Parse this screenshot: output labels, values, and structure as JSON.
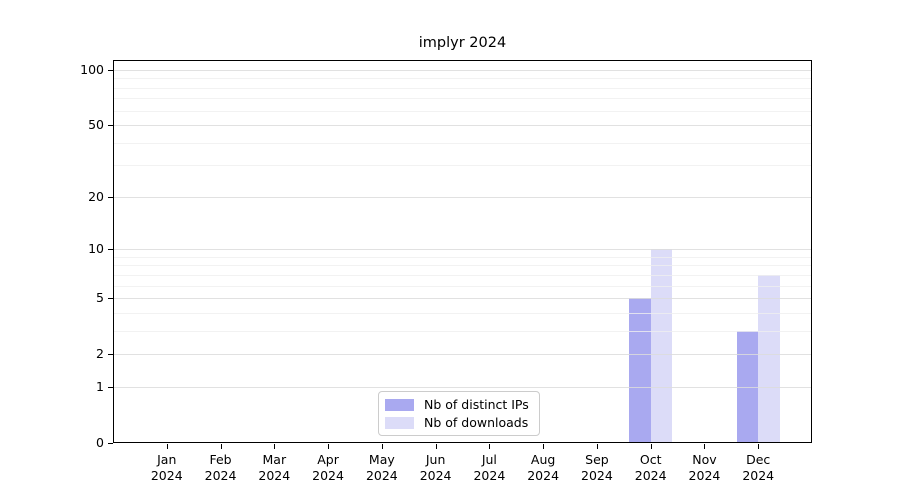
{
  "chart_data": {
    "type": "bar",
    "title": "implyr 2024",
    "categories": [
      "Jan 2024",
      "Feb 2024",
      "Mar 2024",
      "Apr 2024",
      "May 2024",
      "Jun 2024",
      "Jul 2024",
      "Aug 2024",
      "Sep 2024",
      "Oct 2024",
      "Nov 2024",
      "Dec 2024"
    ],
    "series": [
      {
        "name": "Nb of distinct IPs",
        "color": "#a9a9f0",
        "values": [
          0,
          0,
          0,
          0,
          0,
          0,
          0,
          0,
          0,
          5,
          0,
          3
        ]
      },
      {
        "name": "Nb of downloads",
        "color": "#dcdcf8",
        "values": [
          0,
          0,
          0,
          0,
          0,
          0,
          0,
          0,
          0,
          10,
          0,
          7
        ]
      }
    ],
    "xlabel": "",
    "ylabel": "",
    "yscale": "log1p",
    "yticks": [
      0,
      1,
      2,
      5,
      10,
      20,
      50,
      100
    ],
    "minor_yticks": [
      3,
      4,
      6,
      7,
      8,
      9,
      30,
      40,
      60,
      70,
      80,
      90
    ],
    "ylim": [
      0,
      113
    ],
    "grid": "horizontal major and minor, drawn over bars",
    "legend_position": "bottom center inside plot"
  },
  "colors": {
    "background": "#ffffff",
    "axis": "#000000",
    "major_grid": "#dcdcdc",
    "minor_grid": "#efefef",
    "legend_border": "#cccccc",
    "text": "#000000"
  }
}
